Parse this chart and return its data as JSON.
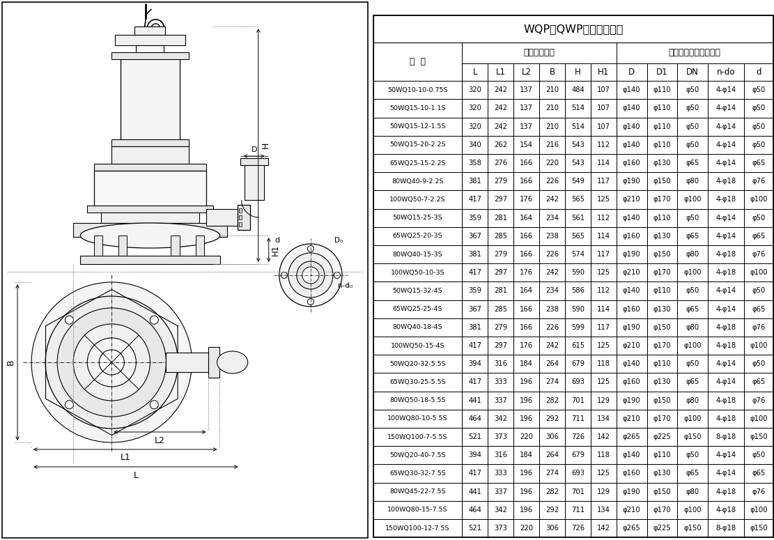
{
  "title": "WQP（QWP）安装尺寸表",
  "col_header2": [
    "型  号",
    "L",
    "L1",
    "L2",
    "B",
    "H",
    "H1",
    "D",
    "D1",
    "DN",
    "n-do",
    "d"
  ],
  "wai_xing": "外形安装尺寸",
  "beng_chu": "泵出口法兰及连接尺寸",
  "xing_hao": "型  号",
  "rows": [
    [
      "50WQ10-10-0.75S",
      "320",
      "242",
      "137",
      "210",
      "484",
      "107",
      "φ140",
      "φ110",
      "φ50",
      "4-φ14",
      "φ50"
    ],
    [
      "50WQ15-10-1.1S",
      "320",
      "242",
      "137",
      "210",
      "514",
      "107",
      "φ140",
      "φ110",
      "φ50",
      "4-φ14",
      "φ50"
    ],
    [
      "50WQ15-12-1.5S",
      "320",
      "242",
      "137",
      "210",
      "514",
      "107",
      "φ140",
      "φ110",
      "φ50",
      "4-φ14",
      "φ50"
    ],
    [
      "50WQ15-20-2.2S",
      "340",
      "262",
      "154",
      "216",
      "543",
      "112",
      "φ140",
      "φ110",
      "φ50",
      "4-φ14",
      "φ50"
    ],
    [
      "65WQ25-15-2.2S",
      "358",
      "276",
      "166",
      "220",
      "543",
      "114",
      "φ160",
      "φ130",
      "φ65",
      "4-φ14",
      "φ65"
    ],
    [
      "80WQ40-9-2.2S",
      "381",
      "279",
      "166",
      "226",
      "549",
      "117",
      "φ190",
      "φ150",
      "φ80",
      "4-φ18",
      "φ76"
    ],
    [
      "100WQ50-7-2.2S",
      "417",
      "297",
      "176",
      "242",
      "565",
      "125",
      "φ210",
      "φ170",
      "φ100",
      "4-φ18",
      "φ100"
    ],
    [
      "50WQ15-25-3S",
      "359",
      "281",
      "164",
      "234",
      "561",
      "112",
      "φ140",
      "φ110",
      "φ50",
      "4-φ14",
      "φ50"
    ],
    [
      "65WQ25-20-3S",
      "367",
      "285",
      "166",
      "238",
      "565",
      "114",
      "φ160",
      "φ130",
      "φ65",
      "4-φ14",
      "φ65"
    ],
    [
      "80WQ40-15-3S",
      "381",
      "279",
      "166",
      "226",
      "574",
      "117",
      "φ190",
      "φ150",
      "φ80",
      "4-φ18",
      "φ76"
    ],
    [
      "100WQ50-10-3S",
      "417",
      "297",
      "176",
      "242",
      "590",
      "125",
      "φ210",
      "φ170",
      "φ100",
      "4-φ18",
      "φ100"
    ],
    [
      "50WQ15-32-4S",
      "359",
      "281",
      "164",
      "234",
      "586",
      "112",
      "φ140",
      "φ110",
      "φ50",
      "4-φ14",
      "φ50"
    ],
    [
      "65WQ25-25-4S",
      "367",
      "285",
      "166",
      "238",
      "590",
      "114",
      "φ160",
      "φ130",
      "φ65",
      "4-φ14",
      "φ65"
    ],
    [
      "80WQ40-18-4S",
      "381",
      "279",
      "166",
      "226",
      "599",
      "117",
      "φ190",
      "φ150",
      "φ80",
      "4-φ18",
      "φ76"
    ],
    [
      "100WQ50-15-4S",
      "417",
      "297",
      "176",
      "242",
      "615",
      "125",
      "φ210",
      "φ170",
      "φ100",
      "4-φ18",
      "φ100"
    ],
    [
      "50WQ20-32-5.5S",
      "394",
      "316",
      "184",
      "264",
      "679",
      "118",
      "φ140",
      "φ110",
      "φ50",
      "4-φ14",
      "φ50"
    ],
    [
      "65WQ30-25-5.5S",
      "417",
      "333",
      "196",
      "274",
      "693",
      "125",
      "φ160",
      "φ130",
      "φ65",
      "4-φ14",
      "φ65"
    ],
    [
      "80WQ50-18-5.5S",
      "441",
      "337",
      "196",
      "282",
      "701",
      "129",
      "φ190",
      "φ150",
      "φ80",
      "4-φ18",
      "φ76"
    ],
    [
      "100WQ80-10-5.5S",
      "464",
      "342",
      "196",
      "292",
      "711",
      "134",
      "φ210",
      "φ170",
      "φ100",
      "4-φ18",
      "φ100"
    ],
    [
      "150WQ100-7-5.5S",
      "521",
      "373",
      "220",
      "306",
      "726",
      "142",
      "φ265",
      "φ225",
      "φ150",
      "8-φ18",
      "φ150"
    ],
    [
      "50WQ20-40-7.5S",
      "394",
      "316",
      "184",
      "264",
      "679",
      "118",
      "φ140",
      "φ110",
      "φ50",
      "4-φ14",
      "φ50"
    ],
    [
      "65WQ30-32-7.5S",
      "417",
      "333",
      "196",
      "274",
      "693",
      "125",
      "φ160",
      "φ130",
      "φ65",
      "4-φ14",
      "φ65"
    ],
    [
      "80WQ45-22-7.5S",
      "441",
      "337",
      "196",
      "282",
      "701",
      "129",
      "φ190",
      "φ150",
      "φ80",
      "4-φ18",
      "φ76"
    ],
    [
      "100WQ80-15-7.5S",
      "464",
      "342",
      "196",
      "292",
      "711",
      "134",
      "φ210",
      "φ170",
      "φ100",
      "4-φ18",
      "φ100"
    ],
    [
      "150WQ100-12-7.5S",
      "521",
      "373",
      "220",
      "306",
      "726",
      "142",
      "φ265",
      "φ225",
      "φ150",
      "8-φ18",
      "φ150"
    ]
  ],
  "col_widths": [
    1.9,
    0.55,
    0.55,
    0.55,
    0.55,
    0.55,
    0.55,
    0.65,
    0.65,
    0.65,
    0.78,
    0.62
  ],
  "bg_color": "#ffffff",
  "line_color": "#000000",
  "text_color": "#000000"
}
